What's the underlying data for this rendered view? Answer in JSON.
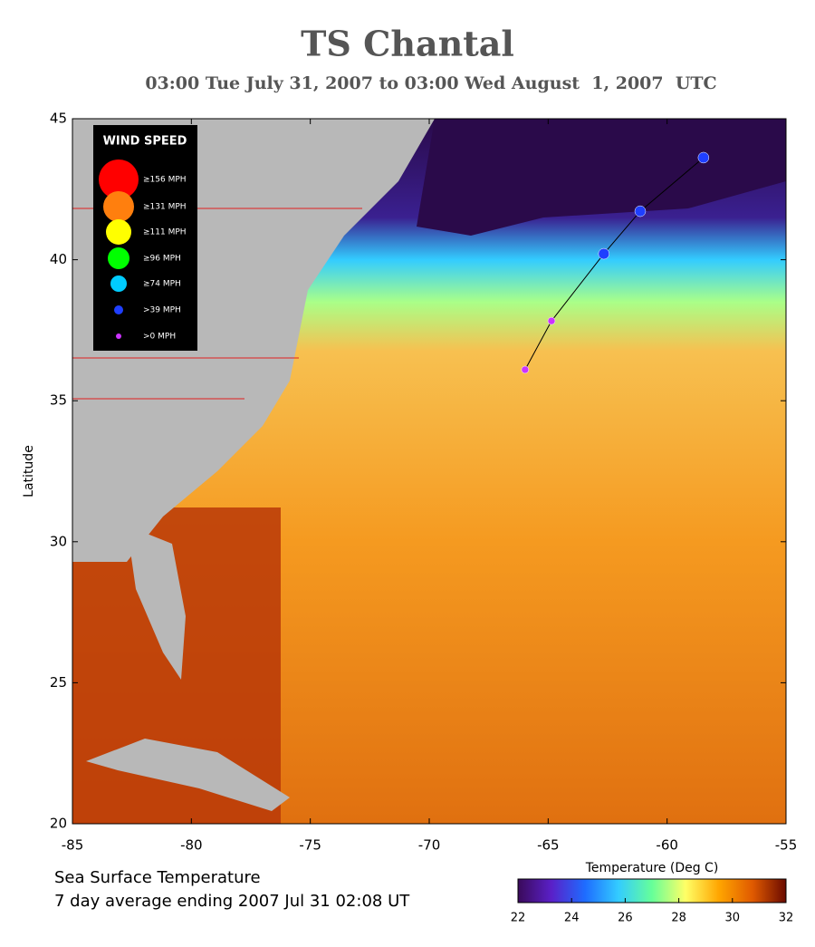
{
  "chart_data": {
    "type": "track-map",
    "title": "TS Chantal",
    "subtitle": "03:00 Tue July 31, 2007 to 03:00 Wed August  1, 2007  UTC",
    "y_label": "Latitude",
    "xlim": [
      -85,
      -55
    ],
    "xticks": [
      -85,
      -80,
      -75,
      -70,
      -65,
      -60,
      -55
    ],
    "ylim": [
      20,
      45
    ],
    "yticks": [
      20,
      25,
      30,
      35,
      40,
      45
    ],
    "legend": {
      "title": "WIND SPEED",
      "items": [
        {
          "label": "≥156 MPH",
          "color": "#ff0000"
        },
        {
          "label": "≥131 MPH",
          "color": "#ff7f0e"
        },
        {
          "label": "≥111 MPH",
          "color": "#ffff00"
        },
        {
          "label": "≥96 MPH",
          "color": "#00ff00"
        },
        {
          "label": "≥74 MPH",
          "color": "#00ccff"
        },
        {
          "label": ">39 MPH",
          "color": "#1f3fff"
        },
        {
          "label": ">0 MPH",
          "color": "#cc33ff"
        }
      ]
    },
    "track": {
      "x": [
        -65.97,
        -64.86,
        -62.66,
        -61.13,
        -58.47
      ],
      "y": [
        36.1,
        37.83,
        40.21,
        41.72,
        43.62
      ],
      "colors": [
        "#cc33ff",
        "#cc33ff",
        "#1f3fff",
        "#1f3fff",
        "#1f3fff"
      ]
    },
    "caption_line1": "Sea Surface Temperature",
    "caption_line2": "7 day average ending 2007 Jul 31 02:08 UT",
    "colorbar": {
      "title": "Temperature (Deg C)",
      "lim": [
        22,
        32
      ],
      "ticks": [
        22,
        24,
        26,
        28,
        30,
        32
      ],
      "colors": [
        "#3a0a5a",
        "#5a20c8",
        "#1e6cff",
        "#33ccff",
        "#66ff99",
        "#ffff66",
        "#ffa500",
        "#e05a00",
        "#6a0a00"
      ]
    }
  }
}
